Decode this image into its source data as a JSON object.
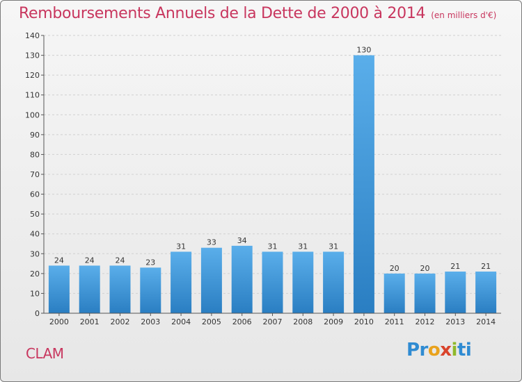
{
  "title": "Remboursements Annuels de la Dette de 2000 à 2014",
  "subtitle": "(en milliers d'€)",
  "commune": "CLAM",
  "logo": {
    "p1": "Pr",
    "p2": "o",
    "p3": "x",
    "p4": "i",
    "p5": "ti"
  },
  "colors": {
    "title": "#c8365e",
    "bar_top": "#5aaeea",
    "bar_bottom": "#2a7ec2"
  },
  "chart_data": {
    "type": "bar",
    "title": "Remboursements Annuels de la Dette de 2000 à 2014",
    "subtitle": "(en milliers d'€)",
    "xlabel": "",
    "ylabel": "",
    "categories": [
      "2000",
      "2001",
      "2002",
      "2003",
      "2004",
      "2005",
      "2006",
      "2007",
      "2008",
      "2009",
      "2010",
      "2011",
      "2012",
      "2013",
      "2014"
    ],
    "values": [
      24,
      24,
      24,
      23,
      31,
      33,
      34,
      31,
      31,
      31,
      130,
      20,
      20,
      21,
      21
    ],
    "ylim": [
      0,
      140
    ],
    "yticks": [
      0,
      10,
      20,
      30,
      40,
      50,
      60,
      70,
      80,
      90,
      100,
      110,
      120,
      130,
      140
    ],
    "grid": true
  }
}
